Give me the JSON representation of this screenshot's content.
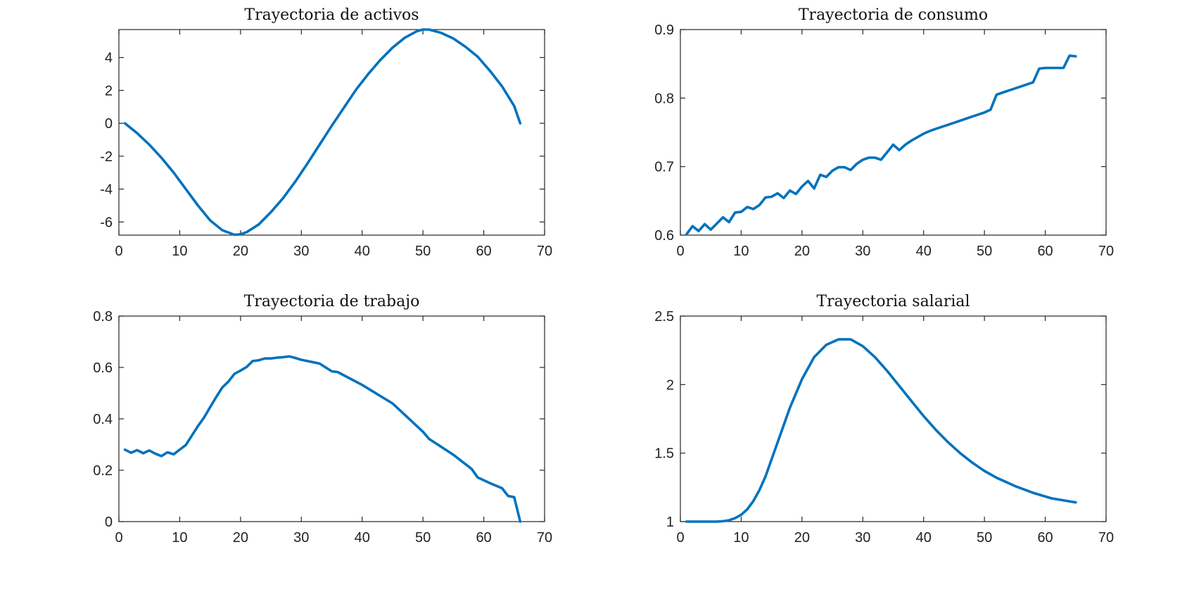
{
  "figure": {
    "series_color": "#0072BD"
  },
  "chart_data": [
    {
      "type": "line",
      "title": "Trayectoria de activos",
      "xlabel": "",
      "ylabel": "",
      "xlim": [
        0,
        70
      ],
      "ylim": [
        -6.8,
        5.7
      ],
      "xticks": [
        0,
        10,
        20,
        30,
        40,
        50,
        60,
        70
      ],
      "xticklabels": [
        "0",
        "10",
        "20",
        "30",
        "40",
        "50",
        "60",
        "70"
      ],
      "yticks": [
        -6,
        -4,
        -2,
        0,
        2,
        4
      ],
      "yticklabels": [
        "-6",
        "-4",
        "-2",
        "0",
        "2",
        "4"
      ],
      "grid": false,
      "series": [
        {
          "x": [
            1,
            3,
            5,
            7,
            9,
            11,
            13,
            15,
            17,
            19,
            20,
            21,
            23,
            25,
            27,
            29,
            31,
            33,
            35,
            37,
            39,
            41,
            43,
            45,
            47,
            49,
            50,
            51,
            53,
            55,
            57,
            59,
            61,
            63,
            65,
            66
          ],
          "y": [
            0.0,
            -0.6,
            -1.3,
            -2.1,
            -3.0,
            -4.0,
            -5.0,
            -5.9,
            -6.5,
            -6.78,
            -6.75,
            -6.62,
            -6.15,
            -5.4,
            -4.55,
            -3.55,
            -2.45,
            -1.3,
            -0.15,
            0.95,
            2.05,
            3.0,
            3.85,
            4.6,
            5.2,
            5.6,
            5.7,
            5.7,
            5.5,
            5.15,
            4.65,
            4.05,
            3.2,
            2.25,
            1.05,
            0.0
          ]
        }
      ]
    },
    {
      "type": "line",
      "title": "Trayectoria de consumo",
      "xlabel": "",
      "ylabel": "",
      "xlim": [
        0,
        70
      ],
      "ylim": [
        0.6,
        0.9
      ],
      "xticks": [
        0,
        10,
        20,
        30,
        40,
        50,
        60,
        70
      ],
      "xticklabels": [
        "0",
        "10",
        "20",
        "30",
        "40",
        "50",
        "60",
        "70"
      ],
      "yticks": [
        0.6,
        0.7,
        0.8,
        0.9
      ],
      "yticklabels": [
        "0.6",
        "0.7",
        "0.8",
        "0.9"
      ],
      "grid": false,
      "series": [
        {
          "x": [
            1,
            2,
            3,
            4,
            5,
            6,
            7,
            8,
            9,
            10,
            11,
            12,
            13,
            14,
            15,
            16,
            17,
            18,
            19,
            20,
            21,
            22,
            23,
            24,
            25,
            26,
            27,
            28,
            29,
            30,
            31,
            32,
            33,
            34,
            35,
            36,
            37,
            38,
            39,
            40,
            41,
            42,
            43,
            44,
            45,
            46,
            47,
            48,
            49,
            50,
            51,
            52,
            53,
            54,
            55,
            56,
            57,
            58,
            59,
            60,
            61,
            62,
            63,
            64,
            65
          ],
          "y": [
            0.601,
            0.613,
            0.606,
            0.616,
            0.608,
            0.617,
            0.626,
            0.619,
            0.633,
            0.634,
            0.641,
            0.638,
            0.644,
            0.655,
            0.656,
            0.661,
            0.654,
            0.665,
            0.66,
            0.671,
            0.679,
            0.668,
            0.688,
            0.685,
            0.694,
            0.699,
            0.699,
            0.695,
            0.704,
            0.71,
            0.713,
            0.713,
            0.71,
            0.721,
            0.732,
            0.724,
            0.732,
            0.738,
            0.743,
            0.748,
            0.752,
            0.755,
            0.758,
            0.761,
            0.764,
            0.767,
            0.77,
            0.773,
            0.776,
            0.779,
            0.783,
            0.805,
            0.808,
            0.811,
            0.814,
            0.817,
            0.82,
            0.823,
            0.843,
            0.844,
            0.844,
            0.844,
            0.844,
            0.862,
            0.861
          ]
        }
      ]
    },
    {
      "type": "line",
      "title": "Trayectoria de trabajo",
      "xlabel": "",
      "ylabel": "",
      "xlim": [
        0,
        70
      ],
      "ylim": [
        0,
        0.8
      ],
      "xticks": [
        0,
        10,
        20,
        30,
        40,
        50,
        60,
        70
      ],
      "xticklabels": [
        "0",
        "10",
        "20",
        "30",
        "40",
        "50",
        "60",
        "70"
      ],
      "yticks": [
        0,
        0.2,
        0.4,
        0.6,
        0.8
      ],
      "yticklabels": [
        "0",
        "0.2",
        "0.4",
        "0.6",
        "0.8"
      ],
      "grid": false,
      "series": [
        {
          "x": [
            1,
            2,
            3,
            4,
            5,
            6,
            7,
            8,
            9,
            11,
            13,
            14,
            15,
            16,
            17,
            18,
            19,
            20,
            21,
            22,
            23,
            24,
            25,
            26,
            27,
            28,
            29,
            30,
            31,
            32,
            33,
            34,
            35,
            36,
            40,
            45,
            50,
            51,
            55,
            58,
            59,
            61,
            63,
            64,
            65,
            66
          ],
          "y": [
            0.28,
            0.268,
            0.278,
            0.266,
            0.277,
            0.264,
            0.255,
            0.27,
            0.262,
            0.298,
            0.372,
            0.405,
            0.445,
            0.485,
            0.522,
            0.545,
            0.575,
            0.588,
            0.602,
            0.625,
            0.628,
            0.635,
            0.635,
            0.638,
            0.64,
            0.643,
            0.637,
            0.63,
            0.625,
            0.62,
            0.615,
            0.6,
            0.585,
            0.582,
            0.532,
            0.46,
            0.35,
            0.322,
            0.26,
            0.205,
            0.172,
            0.15,
            0.13,
            0.1,
            0.095,
            0.0
          ]
        }
      ]
    },
    {
      "type": "line",
      "title": "Trayectoria salarial",
      "xlabel": "",
      "ylabel": "",
      "xlim": [
        0,
        70
      ],
      "ylim": [
        1,
        2.5
      ],
      "xticks": [
        0,
        10,
        20,
        30,
        40,
        50,
        60,
        70
      ],
      "xticklabels": [
        "0",
        "10",
        "20",
        "30",
        "40",
        "50",
        "60",
        "70"
      ],
      "yticks": [
        1,
        1.5,
        2,
        2.5
      ],
      "yticklabels": [
        "1",
        "1.5",
        "2",
        "2.5"
      ],
      "grid": false,
      "series": [
        {
          "x": [
            1,
            4,
            6,
            7,
            8,
            9,
            10,
            11,
            12,
            13,
            14,
            16,
            18,
            20,
            22,
            24,
            26,
            28,
            30,
            32,
            34,
            36,
            38,
            40,
            42,
            44,
            46,
            48,
            50,
            52,
            55,
            58,
            61,
            65
          ],
          "y": [
            1.0,
            1.0,
            1.0,
            1.003,
            1.01,
            1.025,
            1.05,
            1.09,
            1.15,
            1.23,
            1.33,
            1.58,
            1.83,
            2.04,
            2.2,
            2.29,
            2.33,
            2.33,
            2.28,
            2.2,
            2.1,
            1.99,
            1.88,
            1.77,
            1.67,
            1.58,
            1.5,
            1.43,
            1.37,
            1.32,
            1.26,
            1.21,
            1.17,
            1.14
          ]
        }
      ]
    }
  ]
}
